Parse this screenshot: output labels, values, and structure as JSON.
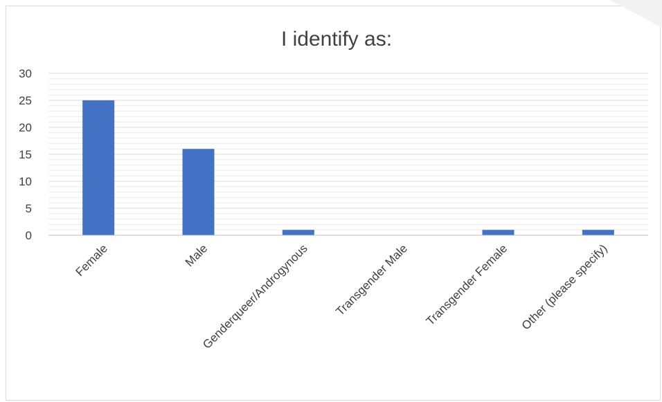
{
  "chart_data": {
    "type": "bar",
    "title": "I identify as:",
    "xlabel": "",
    "ylabel": "",
    "categories": [
      "Female",
      "Male",
      "Genderqueer/Androgynous",
      "Transgender Male",
      "Transgender Female",
      "Other (please specify)"
    ],
    "values": [
      25,
      16,
      1,
      0,
      1,
      1
    ],
    "ylim": [
      0,
      30
    ],
    "yticks": [
      "0",
      "5",
      "10",
      "15",
      "20",
      "25",
      "30"
    ],
    "grid": true,
    "legend": "none",
    "bar_color": "#4472c4",
    "grid_major_color": "#d9d9d9",
    "grid_minor_color": "#ececec"
  }
}
